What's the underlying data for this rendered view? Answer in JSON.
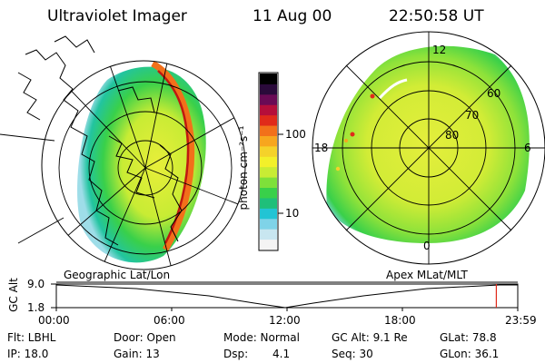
{
  "header": {
    "instrument": "Ultraviolet Imager",
    "date": "11 Aug 00",
    "time": "22:50:58 UT"
  },
  "colorbar": {
    "unit_label": "photon cm⁻²s⁻¹",
    "tick_100": "100",
    "tick_10": "10",
    "colors": [
      "#f4f4f4",
      "#c8e6f0",
      "#7fd3e8",
      "#22c4d4",
      "#1fbf7a",
      "#39d04a",
      "#7ee03a",
      "#c8ec34",
      "#f3f02a",
      "#f5d22a",
      "#f7a61e",
      "#f2701a",
      "#e02a1a",
      "#b50e3a",
      "#6a0a55",
      "#2a0a3a",
      "#000000"
    ]
  },
  "left_panel": {
    "caption": "Geographic Lat/Lon"
  },
  "right_panel": {
    "caption": "Apex MLat/MLT",
    "mlt_12": "12",
    "mlt_18": "18",
    "mlt_6": "6",
    "mlt_0": "0",
    "lat_60": "60",
    "lat_70": "70",
    "lat_80": "80"
  },
  "timeline": {
    "ylabel": "GC Alt",
    "y_top": "9.0",
    "y_bottom": "1.8",
    "ticks": [
      "00:00",
      "06:00",
      "12:00",
      "18:00",
      "23:59"
    ],
    "current_time_fraction": 0.9535
  },
  "footer": {
    "flt": "Flt: LBHL",
    "ip": "IP: 18.0",
    "door": "Door: Open",
    "gain": "Gain: 13",
    "mode": "Mode: Normal",
    "dsp_label": "Dsp:",
    "dsp_value": "4.1",
    "gcalt": "GC Alt: 9.1 Re",
    "seq": "Seq: 30",
    "glat": "GLat:  78.8",
    "glon": "GLon:  36.1"
  }
}
